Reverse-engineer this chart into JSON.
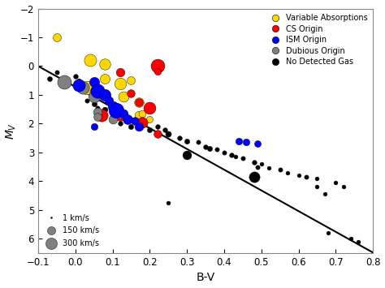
{
  "xlabel": "B-V",
  "ylabel": "$M_V$",
  "xlim": [
    -0.1,
    0.8
  ],
  "ylim": [
    -2,
    6.5
  ],
  "fit_line": {
    "x0": -0.1,
    "x1": 0.8,
    "slope": 7.2,
    "intercept": 0.72
  },
  "legend_categories": [
    {
      "label": "Variable Absorptions",
      "color": "#FFD700"
    },
    {
      "label": "CS Origin",
      "color": "#FF0000"
    },
    {
      "label": "ISM Origin",
      "color": "#0000FF"
    },
    {
      "label": "Dubious Origin",
      "color": "#808080"
    },
    {
      "label": "No Detected Gas",
      "color": "#000000"
    }
  ],
  "size_legend": [
    {
      "label": "1 km/s",
      "size": 1,
      "color": "#000000"
    },
    {
      "label": "150 km/s",
      "size": 150,
      "color": "#808080"
    },
    {
      "label": "300 km/s",
      "size": 300,
      "color": "#808080"
    }
  ],
  "stars": [
    {
      "bv": -0.05,
      "mv": -1.0,
      "color": "#FFD700",
      "v": 80
    },
    {
      "bv": 0.04,
      "mv": -0.2,
      "color": "#FFD700",
      "v": 190
    },
    {
      "bv": 0.08,
      "mv": -0.08,
      "color": "#FFD700",
      "v": 150
    },
    {
      "bv": 0.08,
      "mv": 0.45,
      "color": "#FFD700",
      "v": 120
    },
    {
      "bv": 0.03,
      "mv": 0.75,
      "color": "#FFD700",
      "v": 230
    },
    {
      "bv": 0.05,
      "mv": 0.9,
      "color": "#FFD700",
      "v": 100
    },
    {
      "bv": 0.12,
      "mv": 0.6,
      "color": "#FFD700",
      "v": 175
    },
    {
      "bv": 0.15,
      "mv": 0.5,
      "color": "#FFD700",
      "v": 80
    },
    {
      "bv": 0.13,
      "mv": 1.05,
      "color": "#FFD700",
      "v": 135
    },
    {
      "bv": 0.17,
      "mv": 1.25,
      "color": "#FFD700",
      "v": 110
    },
    {
      "bv": 0.1,
      "mv": 1.5,
      "color": "#FFD700",
      "v": 85
    },
    {
      "bv": 0.17,
      "mv": 1.7,
      "color": "#FFD700",
      "v": 90
    },
    {
      "bv": 0.18,
      "mv": 1.65,
      "color": "#FFD700",
      "v": 60
    },
    {
      "bv": 0.2,
      "mv": 1.85,
      "color": "#FFD700",
      "v": 50
    },
    {
      "bv": 0.12,
      "mv": 0.2,
      "color": "#FF0000",
      "v": 90
    },
    {
      "bv": 0.22,
      "mv": 0.0,
      "color": "#FF0000",
      "v": 240
    },
    {
      "bv": 0.15,
      "mv": 0.95,
      "color": "#FF0000",
      "v": 75
    },
    {
      "bv": 0.17,
      "mv": 1.25,
      "color": "#FF0000",
      "v": 75
    },
    {
      "bv": 0.2,
      "mv": 1.45,
      "color": "#FF0000",
      "v": 185
    },
    {
      "bv": 0.07,
      "mv": 1.7,
      "color": "#FF0000",
      "v": 195
    },
    {
      "bv": 0.12,
      "mv": 1.75,
      "color": "#FF0000",
      "v": 85
    },
    {
      "bv": 0.18,
      "mv": 1.95,
      "color": "#FF0000",
      "v": 145
    },
    {
      "bv": 0.22,
      "mv": 2.35,
      "color": "#FF0000",
      "v": 75
    },
    {
      "bv": 0.22,
      "mv": 0.18,
      "color": "#FF0000",
      "v": 55
    },
    {
      "bv": -0.03,
      "mv": 0.55,
      "color": "#808080",
      "v": 245
    },
    {
      "bv": 0.02,
      "mv": 0.75,
      "color": "#808080",
      "v": 195
    },
    {
      "bv": 0.05,
      "mv": 1.05,
      "color": "#808080",
      "v": 175
    },
    {
      "bv": 0.06,
      "mv": 1.6,
      "color": "#808080",
      "v": 95
    },
    {
      "bv": 0.06,
      "mv": 1.75,
      "color": "#808080",
      "v": 75
    },
    {
      "bv": 0.1,
      "mv": 1.85,
      "color": "#808080",
      "v": 95
    },
    {
      "bv": 0.12,
      "mv": 1.7,
      "color": "#808080",
      "v": 55
    },
    {
      "bv": 0.01,
      "mv": 0.65,
      "color": "#0000FF",
      "v": 195
    },
    {
      "bv": 0.05,
      "mv": 0.55,
      "color": "#0000FF",
      "v": 125
    },
    {
      "bv": 0.06,
      "mv": 0.85,
      "color": "#0000FF",
      "v": 255
    },
    {
      "bv": 0.08,
      "mv": 1.0,
      "color": "#0000FF",
      "v": 175
    },
    {
      "bv": 0.09,
      "mv": 1.2,
      "color": "#0000FF",
      "v": 95
    },
    {
      "bv": 0.1,
      "mv": 1.4,
      "color": "#0000FF",
      "v": 135
    },
    {
      "bv": 0.11,
      "mv": 1.55,
      "color": "#0000FF",
      "v": 295
    },
    {
      "bv": 0.13,
      "mv": 1.65,
      "color": "#0000FF",
      "v": 95
    },
    {
      "bv": 0.14,
      "mv": 1.85,
      "color": "#0000FF",
      "v": 115
    },
    {
      "bv": 0.16,
      "mv": 1.9,
      "color": "#0000FF",
      "v": 75
    },
    {
      "bv": 0.17,
      "mv": 2.1,
      "color": "#0000FF",
      "v": 95
    },
    {
      "bv": 0.44,
      "mv": 2.6,
      "color": "#0000FF",
      "v": 55
    },
    {
      "bv": 0.46,
      "mv": 2.65,
      "color": "#0000FF",
      "v": 55
    },
    {
      "bv": 0.49,
      "mv": 2.7,
      "color": "#0000FF",
      "v": 50
    },
    {
      "bv": 0.05,
      "mv": 2.1,
      "color": "#0000FF",
      "v": 55
    },
    {
      "bv": -0.07,
      "mv": 0.45,
      "color": "#000000",
      "v": 25
    },
    {
      "bv": -0.05,
      "mv": 0.2,
      "color": "#000000",
      "v": 18
    },
    {
      "bv": -0.03,
      "mv": 0.6,
      "color": "#000000",
      "v": 18
    },
    {
      "bv": 0.0,
      "mv": 0.35,
      "color": "#000000",
      "v": 22
    },
    {
      "bv": 0.01,
      "mv": 0.5,
      "color": "#000000",
      "v": 14
    },
    {
      "bv": 0.02,
      "mv": 0.85,
      "color": "#000000",
      "v": 14
    },
    {
      "bv": 0.03,
      "mv": 1.2,
      "color": "#000000",
      "v": 18
    },
    {
      "bv": 0.05,
      "mv": 1.3,
      "color": "#000000",
      "v": 28
    },
    {
      "bv": 0.06,
      "mv": 1.45,
      "color": "#000000",
      "v": 18
    },
    {
      "bv": 0.07,
      "mv": 1.65,
      "color": "#000000",
      "v": 22
    },
    {
      "bv": 0.08,
      "mv": 1.5,
      "color": "#000000",
      "v": 32
    },
    {
      "bv": 0.1,
      "mv": 1.7,
      "color": "#000000",
      "v": 28
    },
    {
      "bv": 0.12,
      "mv": 2.0,
      "color": "#000000",
      "v": 22
    },
    {
      "bv": 0.15,
      "mv": 2.1,
      "color": "#000000",
      "v": 28
    },
    {
      "bv": 0.18,
      "mv": 2.0,
      "color": "#000000",
      "v": 55
    },
    {
      "bv": 0.2,
      "mv": 2.2,
      "color": "#000000",
      "v": 28
    },
    {
      "bv": 0.22,
      "mv": 2.1,
      "color": "#000000",
      "v": 22
    },
    {
      "bv": 0.24,
      "mv": 2.2,
      "color": "#000000",
      "v": 22
    },
    {
      "bv": 0.25,
      "mv": 2.35,
      "color": "#000000",
      "v": 38
    },
    {
      "bv": 0.28,
      "mv": 2.5,
      "color": "#000000",
      "v": 22
    },
    {
      "bv": 0.3,
      "mv": 2.6,
      "color": "#000000",
      "v": 28
    },
    {
      "bv": 0.3,
      "mv": 3.1,
      "color": "#000000",
      "v": 95
    },
    {
      "bv": 0.33,
      "mv": 2.65,
      "color": "#000000",
      "v": 18
    },
    {
      "bv": 0.35,
      "mv": 2.8,
      "color": "#000000",
      "v": 22
    },
    {
      "bv": 0.36,
      "mv": 2.85,
      "color": "#000000",
      "v": 28
    },
    {
      "bv": 0.38,
      "mv": 2.9,
      "color": "#000000",
      "v": 18
    },
    {
      "bv": 0.4,
      "mv": 3.0,
      "color": "#000000",
      "v": 18
    },
    {
      "bv": 0.42,
      "mv": 3.1,
      "color": "#000000",
      "v": 22
    },
    {
      "bv": 0.43,
      "mv": 3.15,
      "color": "#000000",
      "v": 14
    },
    {
      "bv": 0.45,
      "mv": 3.2,
      "color": "#000000",
      "v": 18
    },
    {
      "bv": 0.48,
      "mv": 3.35,
      "color": "#000000",
      "v": 22
    },
    {
      "bv": 0.48,
      "mv": 3.85,
      "color": "#000000",
      "v": 145
    },
    {
      "bv": 0.49,
      "mv": 3.5,
      "color": "#000000",
      "v": 18
    },
    {
      "bv": 0.5,
      "mv": 3.4,
      "color": "#000000",
      "v": 14
    },
    {
      "bv": 0.52,
      "mv": 3.55,
      "color": "#000000",
      "v": 14
    },
    {
      "bv": 0.55,
      "mv": 3.6,
      "color": "#000000",
      "v": 18
    },
    {
      "bv": 0.57,
      "mv": 3.7,
      "color": "#000000",
      "v": 14
    },
    {
      "bv": 0.6,
      "mv": 3.8,
      "color": "#000000",
      "v": 14
    },
    {
      "bv": 0.62,
      "mv": 3.85,
      "color": "#000000",
      "v": 18
    },
    {
      "bv": 0.65,
      "mv": 3.9,
      "color": "#000000",
      "v": 14
    },
    {
      "bv": 0.65,
      "mv": 4.2,
      "color": "#000000",
      "v": 14
    },
    {
      "bv": 0.67,
      "mv": 4.45,
      "color": "#000000",
      "v": 14
    },
    {
      "bv": 0.68,
      "mv": 5.8,
      "color": "#000000",
      "v": 14
    },
    {
      "bv": 0.7,
      "mv": 4.05,
      "color": "#000000",
      "v": 14
    },
    {
      "bv": 0.72,
      "mv": 4.2,
      "color": "#000000",
      "v": 14
    },
    {
      "bv": 0.25,
      "mv": 4.75,
      "color": "#000000",
      "v": 14
    },
    {
      "bv": 0.74,
      "mv": 6.0,
      "color": "#000000",
      "v": 14
    },
    {
      "bv": 0.76,
      "mv": 6.1,
      "color": "#000000",
      "v": 14
    }
  ]
}
